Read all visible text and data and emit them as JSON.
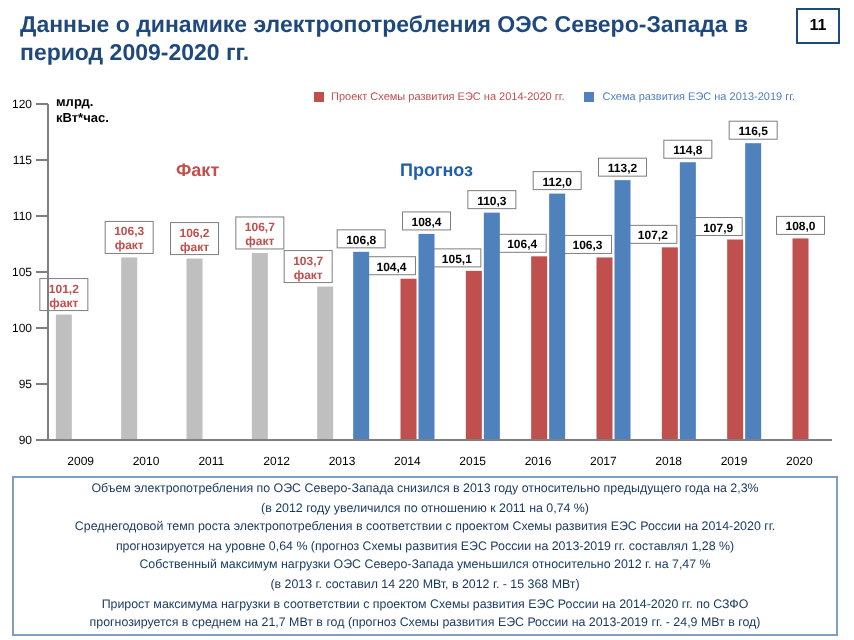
{
  "chart_data": {
    "type": "bar",
    "title": "Данные о динамике электропотребления ОЭС Северо-Запада в период 2009-2020 гг.",
    "ylabel": "млрд. кВт*час.",
    "categories": [
      "2009",
      "2010",
      "2011",
      "2012",
      "2013",
      "2014",
      "2015",
      "2016",
      "2017",
      "2018",
      "2019",
      "2020"
    ],
    "series": [
      {
        "color": "#bfbfbf",
        "values": [
          101.2,
          106.3,
          106.2,
          106.7,
          103.7,
          null,
          null,
          null,
          null,
          null,
          null,
          null
        ],
        "value_labels": [
          "101,2 факт",
          "106,3 факт",
          "106,2 факт",
          "106,7 факт",
          "103,7 факт",
          null,
          null,
          null,
          null,
          null,
          null,
          null
        ]
      },
      {
        "name": "Проект Схемы развития ЕЭС на 2014-2020 гг.",
        "color": "#c0504d",
        "values": [
          null,
          null,
          null,
          null,
          null,
          104.4,
          105.1,
          106.4,
          106.3,
          107.2,
          107.9,
          108.0
        ],
        "value_labels": [
          null,
          null,
          null,
          null,
          null,
          "104,4",
          "105,1",
          "106,4",
          "106,3",
          "107,2",
          "107,9",
          "108,0"
        ]
      },
      {
        "name": "Схема развития ЕЭС на 2013-2019 гг.",
        "color": "#4f81bd",
        "values": [
          null,
          null,
          null,
          null,
          106.8,
          108.4,
          110.3,
          112.0,
          113.2,
          114.8,
          116.5,
          null
        ],
        "value_labels": [
          null,
          null,
          null,
          null,
          "106,8",
          "108,4",
          "110,3",
          "112,0",
          "113,2",
          "114,8",
          "116,5",
          null
        ]
      }
    ],
    "ylim": [
      90,
      120
    ],
    "yticks": [
      90,
      95,
      100,
      105,
      110,
      115,
      120
    ],
    "legend": "top",
    "annotations": [
      "11",
      "Факт",
      "Прогноз",
      "Объем электропотребления по ОЭС Северо-Запада снизился в 2013 году относительно предыдущего года на 2,3%",
      "(в 2012 году увеличился по отношению к 2011 на 0,74 %)",
      "Среднегодовой темп роста электропотребления в соответствии с проектом Схемы развития ЕЭС России на 2014-2020 гг.",
      "прогнозируется на уровне 0,64 % (прогноз Схемы развития ЕЭС России на 2013-2019 гг. составлял 1,28 %)",
      "Собственный  максимум  нагрузки ОЭС Северо-Запада уменьшился относительно 2012 г. на 7,47 %",
      "(в 2013 г. составил 14 220 МВт, в 2012 г. - 15 368 МВт)",
      "Прирост максимума нагрузки в соответствии с проектом Схемы развития ЕЭС России на 2014-2020 гг. по СЗФО",
      "прогнозируется в среднем на 21,7 МВт в год (прогноз Схемы развития ЕЭС России на 2013-2019 гг.  -  24,9 МВт в год)"
    ]
  }
}
